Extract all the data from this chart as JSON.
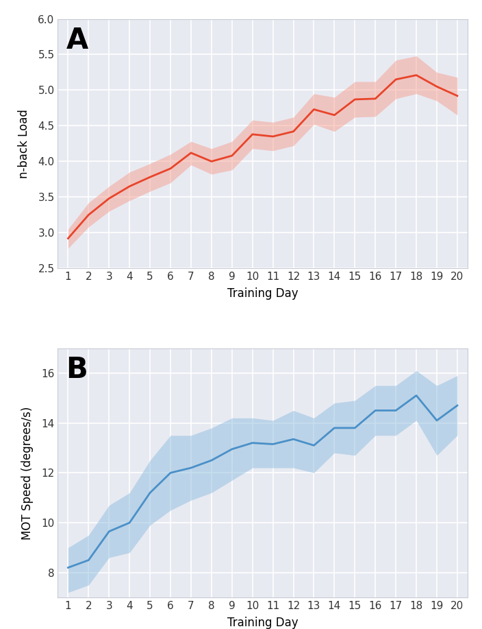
{
  "days": [
    1,
    2,
    3,
    4,
    5,
    6,
    7,
    8,
    9,
    10,
    11,
    12,
    13,
    14,
    15,
    16,
    17,
    18,
    19,
    20
  ],
  "nback_mean": [
    2.92,
    3.25,
    3.48,
    3.65,
    3.78,
    3.9,
    4.12,
    4.0,
    4.08,
    4.38,
    4.35,
    4.42,
    4.73,
    4.65,
    4.87,
    4.88,
    5.15,
    5.21,
    5.05,
    4.92
  ],
  "nback_upper": [
    3.05,
    3.42,
    3.65,
    3.85,
    3.97,
    4.1,
    4.28,
    4.18,
    4.28,
    4.58,
    4.55,
    4.62,
    4.95,
    4.9,
    5.12,
    5.12,
    5.42,
    5.48,
    5.25,
    5.18
  ],
  "nback_lower": [
    2.78,
    3.08,
    3.3,
    3.45,
    3.58,
    3.7,
    3.95,
    3.82,
    3.88,
    4.18,
    4.15,
    4.22,
    4.52,
    4.42,
    4.62,
    4.63,
    4.88,
    4.95,
    4.85,
    4.65
  ],
  "mot_mean": [
    8.2,
    8.5,
    9.65,
    10.0,
    11.2,
    12.0,
    12.2,
    12.5,
    12.95,
    13.2,
    13.15,
    13.35,
    13.1,
    13.8,
    13.8,
    14.5,
    14.5,
    15.1,
    14.1,
    14.7
  ],
  "mot_upper": [
    9.0,
    9.5,
    10.7,
    11.2,
    12.5,
    13.5,
    13.5,
    13.8,
    14.2,
    14.2,
    14.1,
    14.5,
    14.2,
    14.8,
    14.9,
    15.5,
    15.5,
    16.1,
    15.5,
    15.9
  ],
  "mot_lower": [
    7.2,
    7.5,
    8.6,
    8.8,
    9.9,
    10.5,
    10.9,
    11.2,
    11.7,
    12.2,
    12.2,
    12.2,
    12.0,
    12.8,
    12.7,
    13.5,
    13.5,
    14.1,
    12.7,
    13.5
  ],
  "bg_color": "#E8EAF2",
  "grid_color": "#ffffff",
  "nback_line_color": "#E8442A",
  "nback_fill_color": "#F4A090",
  "nback_fill_alpha": 0.5,
  "mot_line_color": "#4A90C8",
  "mot_fill_color": "#90BEE0",
  "mot_fill_alpha": 0.5,
  "label_A": "A",
  "label_B": "B",
  "ylabel_A": "n-back Load",
  "ylabel_B": "MOT Speed (degrees/s)",
  "xlabel": "Training Day",
  "ylim_A": [
    2.5,
    6.0
  ],
  "ylim_B": [
    7.0,
    17.0
  ],
  "yticks_A": [
    2.5,
    3.0,
    3.5,
    4.0,
    4.5,
    5.0,
    5.5,
    6.0
  ],
  "yticks_B": [
    8,
    10,
    12,
    14,
    16
  ],
  "xlim": [
    0.5,
    20.5
  ],
  "xticks": [
    1,
    2,
    3,
    4,
    5,
    6,
    7,
    8,
    9,
    10,
    11,
    12,
    13,
    14,
    15,
    16,
    17,
    18,
    19,
    20
  ]
}
